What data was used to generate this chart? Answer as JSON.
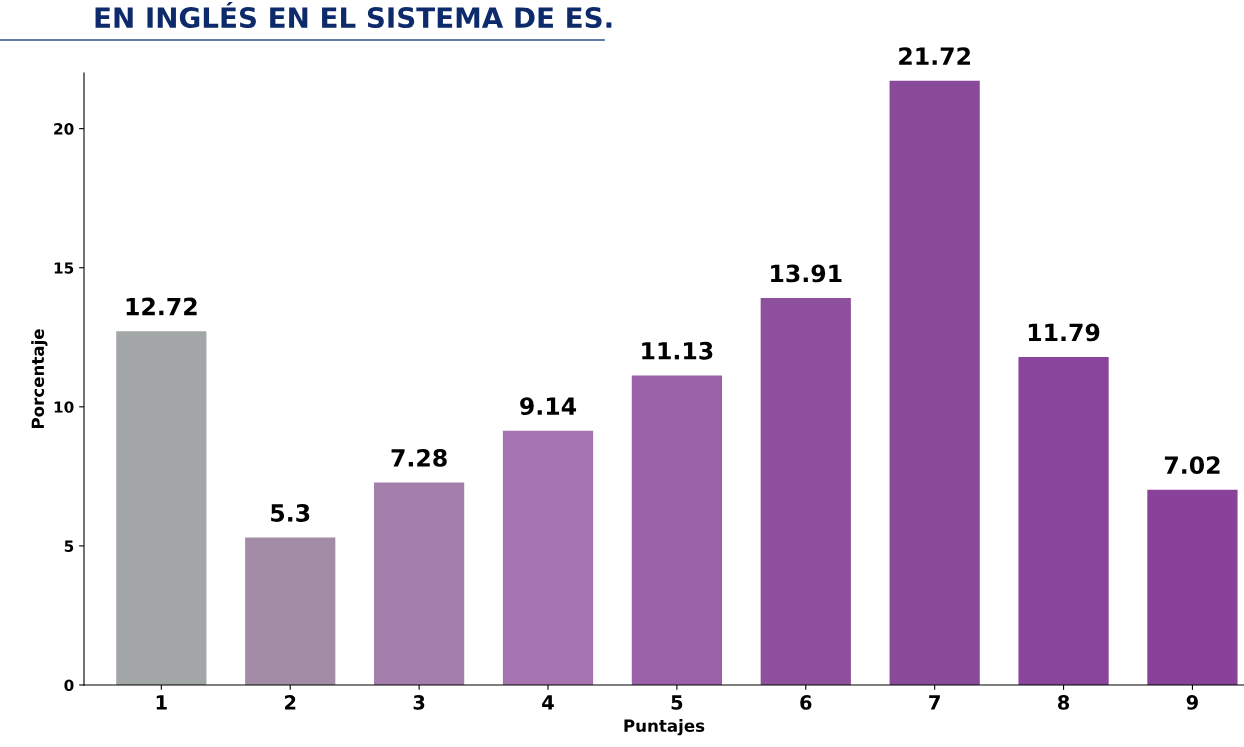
{
  "chart_data": {
    "type": "bar",
    "title": "EN INGLÉS EN EL SISTEMA DE ES.",
    "xlabel": "Puntajes",
    "ylabel": "Porcentaje",
    "categories": [
      "1",
      "2",
      "3",
      "4",
      "5",
      "6",
      "7",
      "8",
      "9"
    ],
    "values": [
      12.72,
      5.3,
      7.28,
      9.14,
      11.13,
      13.91,
      21.72,
      11.79,
      7.02
    ],
    "colors": [
      "#a3a6a7",
      "#a38ca6",
      "#a57fab",
      "#a574b0",
      "#9b61a8",
      "#8e509d",
      "#8a4a9a",
      "#89459b",
      "#884299"
    ],
    "ylim": [
      0,
      22
    ],
    "yticks": [
      0,
      5,
      10,
      15,
      20
    ],
    "data_labels": true,
    "grid": false,
    "legend": false
  }
}
